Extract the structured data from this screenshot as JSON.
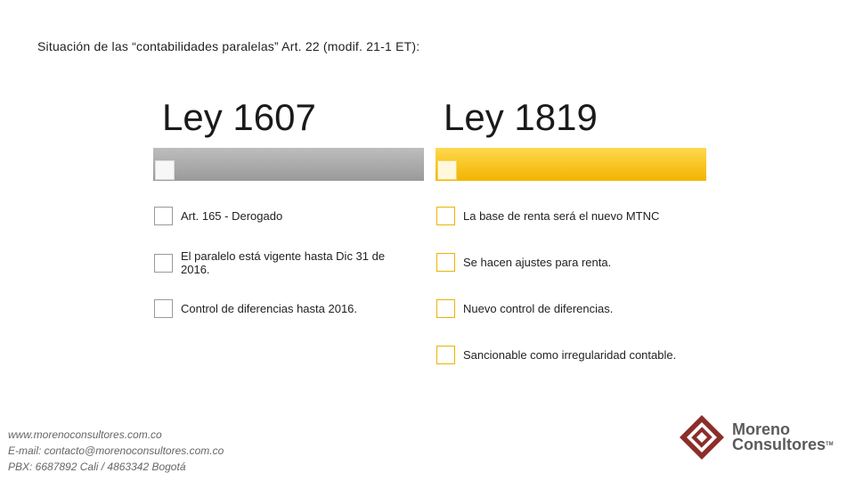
{
  "title": "Situación de las “contabilidades paralelas” Art. 22 (modif. 21-1 ET):",
  "columns": [
    {
      "heading": "Ley 1607",
      "items": [
        "Art. 165 - Derogado",
        "El paralelo está vigente hasta Dic 31 de 2016.",
        "Control de diferencias hasta 2016."
      ]
    },
    {
      "heading": "Ley 1819",
      "items": [
        "La base de renta será el nuevo MTNC",
        "Se hacen ajustes para renta.",
        "Nuevo control de diferencias.",
        "Sancionable como irregularidad contable."
      ]
    }
  ],
  "footer": {
    "website": "www.morenoconsultores.com.co",
    "email": "E-mail: contacto@morenoconsultores.com.co",
    "phone": "PBX: 6687892 Cali / 4863342 Bogotá"
  },
  "logo": {
    "line1": "Moreno",
    "line2": "Consultores",
    "tm": "TM"
  },
  "colors": {
    "gray_bar": "#a6a6a6",
    "gold_bar": "#f5c000",
    "logo_red": "#8b2e2a"
  }
}
